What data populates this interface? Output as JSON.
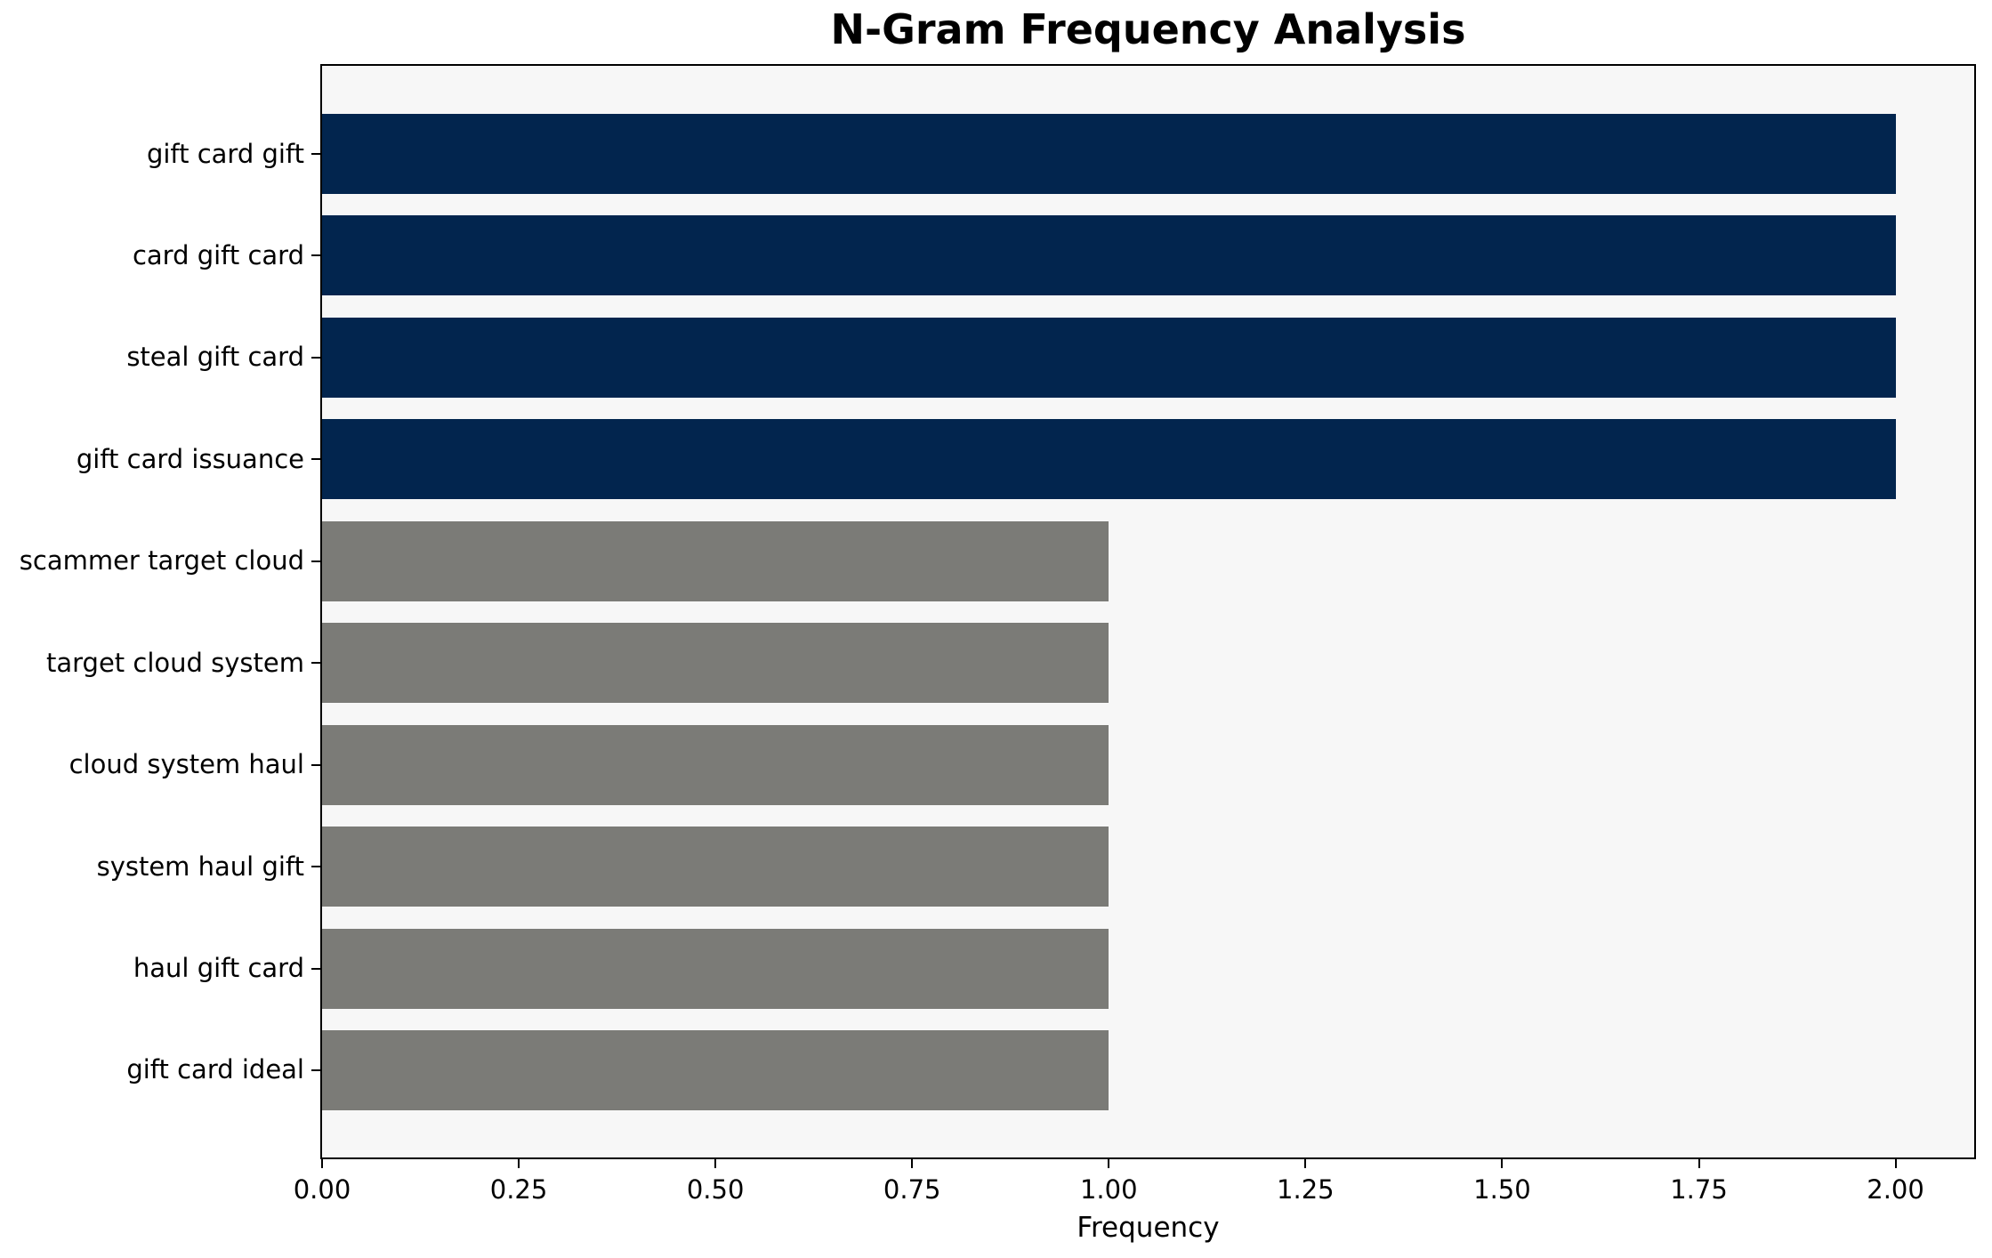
{
  "chart_data": {
    "type": "bar",
    "orientation": "horizontal",
    "title": "N-Gram Frequency Analysis",
    "xlabel": "Frequency",
    "ylabel": "",
    "categories": [
      "gift card gift",
      "card gift card",
      "steal gift card",
      "gift card issuance",
      "scammer target cloud",
      "target cloud system",
      "cloud system haul",
      "system haul gift",
      "haul gift card",
      "gift card ideal"
    ],
    "values": [
      2,
      2,
      2,
      2,
      1,
      1,
      1,
      1,
      1,
      1
    ],
    "bar_colors": [
      "#02254e",
      "#02254e",
      "#02254e",
      "#02254e",
      "#7b7b77",
      "#7b7b77",
      "#7b7b77",
      "#7b7b77",
      "#7b7b77",
      "#7b7b77"
    ],
    "xlim": [
      0,
      2.1
    ],
    "xticks": {
      "values": [
        0,
        0.25,
        0.5,
        0.75,
        1.0,
        1.25,
        1.5,
        1.75,
        2.0
      ],
      "labels": [
        "0.00",
        "0.25",
        "0.50",
        "0.75",
        "1.00",
        "1.25",
        "1.50",
        "1.75",
        "2.00"
      ]
    },
    "grid": false,
    "legend": null,
    "colors": {
      "high_frequency_bar": "#02254e",
      "low_frequency_bar": "#7b7b77",
      "plot_background": "#f7f7f7",
      "figure_background": "#ffffff",
      "axis": "#000000",
      "text": "#000000"
    }
  }
}
